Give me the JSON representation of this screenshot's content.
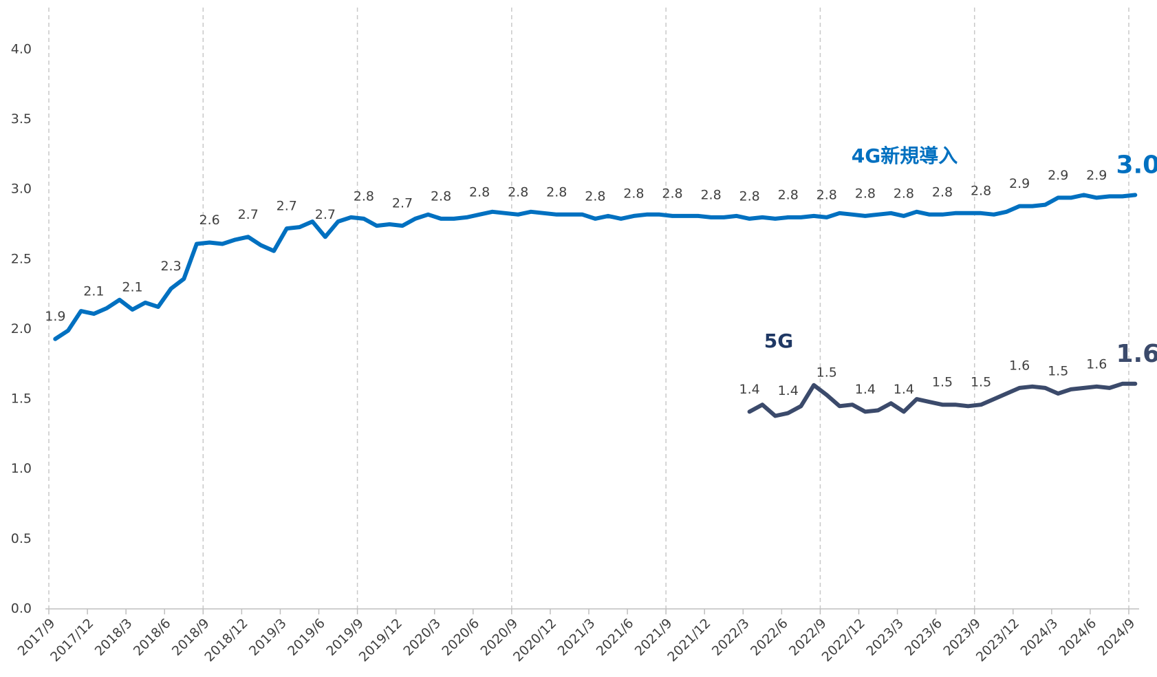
{
  "chart_data": {
    "type": "line",
    "categories": [
      "2017/9",
      null,
      null,
      "2017/12",
      null,
      null,
      "2018/3",
      null,
      null,
      "2018/6",
      null,
      null,
      "2018/9",
      null,
      null,
      "2018/12",
      null,
      null,
      "2019/3",
      null,
      null,
      "2019/6",
      null,
      null,
      "2019/9",
      null,
      null,
      "2019/12",
      null,
      null,
      "2020/3",
      null,
      null,
      "2020/6",
      null,
      null,
      "2020/9",
      null,
      null,
      "2020/12",
      null,
      null,
      "2021/3",
      null,
      null,
      "2021/6",
      null,
      null,
      "2021/9",
      null,
      null,
      "2021/12",
      null,
      null,
      "2022/3",
      null,
      null,
      "2022/6",
      null,
      null,
      "2022/9",
      null,
      null,
      "2022/12",
      null,
      null,
      "2023/3",
      null,
      null,
      "2023/6",
      null,
      null,
      "2023/9",
      null,
      null,
      "2023/12",
      null,
      null,
      "2024/3",
      null,
      null,
      "2024/6",
      null,
      null,
      "2024/9"
    ],
    "series": [
      {
        "name": "4G新規導入",
        "color": "#0070c0",
        "values": [
          1.93,
          1.99,
          2.13,
          2.11,
          2.15,
          2.21,
          2.14,
          2.19,
          2.16,
          2.29,
          2.36,
          2.61,
          2.62,
          2.61,
          2.64,
          2.66,
          2.6,
          2.56,
          2.72,
          2.73,
          2.77,
          2.66,
          2.77,
          2.8,
          2.79,
          2.74,
          2.75,
          2.74,
          2.79,
          2.82,
          2.79,
          2.79,
          2.8,
          2.82,
          2.84,
          2.83,
          2.82,
          2.84,
          2.83,
          2.82,
          2.82,
          2.82,
          2.79,
          2.81,
          2.79,
          2.81,
          2.82,
          2.82,
          2.81,
          2.81,
          2.81,
          2.8,
          2.8,
          2.81,
          2.79,
          2.8,
          2.79,
          2.8,
          2.8,
          2.81,
          2.8,
          2.83,
          2.82,
          2.81,
          2.82,
          2.83,
          2.81,
          2.84,
          2.82,
          2.82,
          2.83,
          2.83,
          2.83,
          2.82,
          2.84,
          2.88,
          2.88,
          2.89,
          2.94,
          2.94,
          2.96,
          2.94,
          2.95,
          2.95,
          2.96
        ],
        "value_labels": [
          "1.9",
          null,
          null,
          "2.1",
          null,
          null,
          "2.1",
          null,
          null,
          "2.3",
          null,
          null,
          "2.6",
          null,
          null,
          "2.7",
          null,
          null,
          "2.7",
          null,
          null,
          "2.7",
          null,
          null,
          "2.8",
          null,
          null,
          "2.7",
          null,
          null,
          "2.8",
          null,
          null,
          "2.8",
          null,
          null,
          "2.8",
          null,
          null,
          "2.8",
          null,
          null,
          "2.8",
          null,
          null,
          "2.8",
          null,
          null,
          "2.8",
          null,
          null,
          "2.8",
          null,
          null,
          "2.8",
          null,
          null,
          "2.8",
          null,
          null,
          "2.8",
          null,
          null,
          "2.8",
          null,
          null,
          "2.8",
          null,
          null,
          "2.8",
          null,
          null,
          "2.8",
          null,
          null,
          "2.9",
          null,
          null,
          "2.9",
          null,
          null,
          "2.9",
          null,
          null,
          "3.0"
        ]
      },
      {
        "name": "5G",
        "color": "#3b4a6b",
        "values": [
          null,
          null,
          null,
          null,
          null,
          null,
          null,
          null,
          null,
          null,
          null,
          null,
          null,
          null,
          null,
          null,
          null,
          null,
          null,
          null,
          null,
          null,
          null,
          null,
          null,
          null,
          null,
          null,
          null,
          null,
          null,
          null,
          null,
          null,
          null,
          null,
          null,
          null,
          null,
          null,
          null,
          null,
          null,
          null,
          null,
          null,
          null,
          null,
          null,
          null,
          null,
          null,
          null,
          null,
          1.41,
          1.46,
          1.38,
          1.4,
          1.45,
          1.6,
          1.53,
          1.45,
          1.46,
          1.41,
          1.42,
          1.47,
          1.41,
          1.5,
          1.48,
          1.46,
          1.46,
          1.45,
          1.46,
          1.5,
          1.54,
          1.58,
          1.59,
          1.58,
          1.54,
          1.57,
          1.58,
          1.59,
          1.58,
          1.61,
          1.61
        ],
        "value_labels": [
          null,
          null,
          null,
          null,
          null,
          null,
          null,
          null,
          null,
          null,
          null,
          null,
          null,
          null,
          null,
          null,
          null,
          null,
          null,
          null,
          null,
          null,
          null,
          null,
          null,
          null,
          null,
          null,
          null,
          null,
          null,
          null,
          null,
          null,
          null,
          null,
          null,
          null,
          null,
          null,
          null,
          null,
          null,
          null,
          null,
          null,
          null,
          null,
          null,
          null,
          null,
          null,
          null,
          null,
          "1.4",
          null,
          null,
          "1.4",
          null,
          null,
          "1.5",
          null,
          null,
          "1.4",
          null,
          null,
          "1.4",
          null,
          null,
          "1.5",
          null,
          null,
          "1.5",
          null,
          null,
          "1.6",
          null,
          null,
          "1.5",
          null,
          null,
          "1.6",
          null,
          null,
          "1.6"
        ]
      }
    ],
    "ylim": [
      0,
      4.3
    ],
    "yticks": [
      {
        "value": 0,
        "label": "0.0"
      },
      0.5,
      {
        "value": 1,
        "label": "1.0"
      },
      1.5,
      {
        "value": 2,
        "label": "2.0"
      },
      2.5,
      {
        "value": 3,
        "label": "3.0"
      },
      3.5,
      {
        "value": 4,
        "label": "4.0"
      }
    ]
  }
}
